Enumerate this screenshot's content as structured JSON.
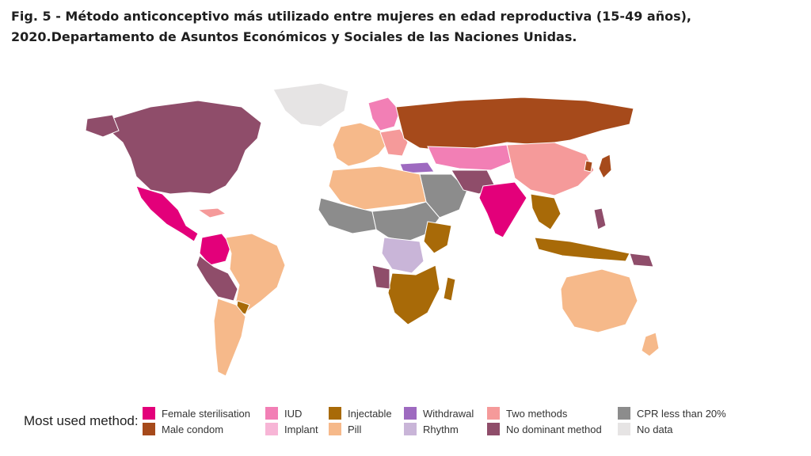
{
  "caption": "Fig. 5 - Método anticonceptivo más utilizado entre mujeres en edad reproductiva (15-49 años), 2020.Departamento de Asuntos Económicos y Sociales de las Naciones Unidas.",
  "legend": {
    "title": "Most used method:",
    "items": [
      {
        "label": "Female sterilisation",
        "color": "#e3007a"
      },
      {
        "label": "Male condom",
        "color": "#a64a1b"
      },
      {
        "label": "IUD",
        "color": "#f27fb5"
      },
      {
        "label": "Implant",
        "color": "#f7b5d6"
      },
      {
        "label": "Injectable",
        "color": "#a86a08"
      },
      {
        "label": "Pill",
        "color": "#f6b98a"
      },
      {
        "label": "Withdrawal",
        "color": "#9e6ac0"
      },
      {
        "label": "Rhythm",
        "color": "#c9b5d8"
      },
      {
        "label": "Two methods",
        "color": "#f59a9a"
      },
      {
        "label": "No dominant method",
        "color": "#8f4d6a"
      },
      {
        "label": "CPR less than 20%",
        "color": "#8c8c8c"
      },
      {
        "label": "No data",
        "color": "#e6e4e4"
      }
    ]
  }
}
